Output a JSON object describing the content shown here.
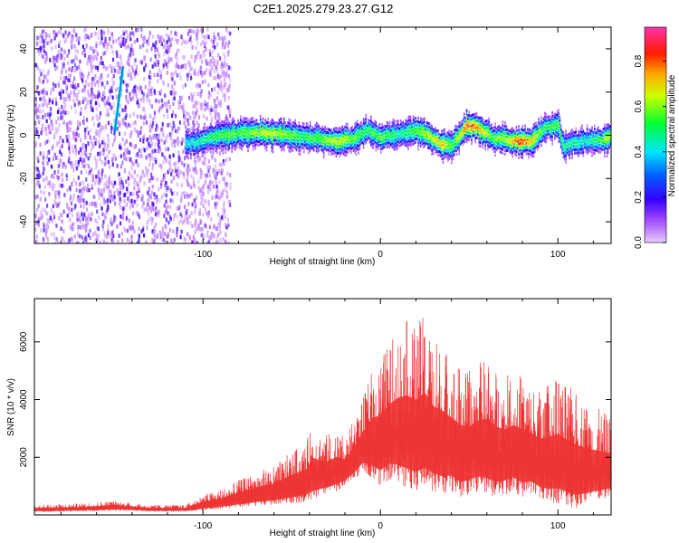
{
  "figure": {
    "title": "C2E1.2025.279.23.27.G12"
  },
  "chart_data": [
    {
      "type": "heatmap",
      "xlabel": "Height of straight line (km)",
      "ylabel": "Frequency (Hz)",
      "xlim": [
        -195,
        130
      ],
      "ylim": [
        -50,
        50
      ],
      "x_ticks": [
        -100,
        0,
        100
      ],
      "x_tick_labels": [
        "-100",
        "0",
        "100"
      ],
      "y_ticks": [
        -40,
        -20,
        0,
        20,
        40
      ],
      "y_tick_labels": [
        "-40",
        "-20",
        "0",
        "20",
        "40"
      ],
      "colorbar": {
        "label": "Normalized spectral amplitude",
        "range": [
          0.0,
          0.95
        ],
        "ticks": [
          0.0,
          0.2,
          0.4,
          0.6,
          0.8
        ],
        "tick_labels": [
          "0.0",
          "0.2",
          "0.4",
          "0.6",
          "0.8"
        ]
      },
      "trace_ridge": {
        "x": [
          -105,
          -95,
          -85,
          -75,
          -65,
          -55,
          -45,
          -35,
          -25,
          -15,
          -8,
          0,
          10,
          20,
          28,
          35,
          40,
          48,
          55,
          62,
          70,
          78,
          85,
          92,
          100,
          103,
          108,
          115,
          122,
          130
        ],
        "freq": [
          -3,
          0,
          1,
          2,
          2,
          1,
          0,
          -1,
          -2,
          -1,
          3,
          0,
          1,
          3,
          0,
          -4,
          -4,
          5,
          4,
          0,
          -1,
          -2,
          -2,
          4,
          5,
          -5,
          -3,
          -2,
          -2,
          0
        ],
        "amplitude": [
          0.45,
          0.55,
          0.6,
          0.6,
          0.7,
          0.65,
          0.55,
          0.6,
          0.7,
          0.6,
          0.55,
          0.6,
          0.5,
          0.6,
          0.7,
          0.75,
          0.55,
          0.85,
          0.8,
          0.6,
          0.65,
          0.9,
          0.75,
          0.55,
          0.6,
          0.5,
          0.5,
          0.45,
          0.55,
          0.7
        ]
      },
      "streak": {
        "x": [
          -150,
          -145
        ],
        "freq": [
          0,
          32
        ]
      },
      "noise_region_xmax": -95
    },
    {
      "type": "line",
      "xlabel": "Height of straight line (km)",
      "ylabel": "SNR (10 * v/v)",
      "xlim": [
        -195,
        130
      ],
      "ylim": [
        0,
        7500
      ],
      "x_ticks": [
        -100,
        0,
        100
      ],
      "x_tick_labels": [
        "-100",
        "0",
        "100"
      ],
      "y_ticks": [
        2000,
        4000,
        6000
      ],
      "y_tick_labels": [
        "2000",
        "4000",
        "6000"
      ],
      "series": [
        {
          "name": "SNR",
          "color": "#ee3333",
          "envelope": {
            "x": [
              -195,
              -170,
              -150,
              -140,
              -130,
              -110,
              -100,
              -90,
              -80,
              -70,
              -60,
              -50,
              -42,
              -38,
              -35,
              -30,
              -25,
              -20,
              -15,
              -10,
              -5,
              0,
              5,
              10,
              15,
              20,
              25,
              30,
              35,
              40,
              45,
              50,
              55,
              60,
              65,
              70,
              75,
              80,
              85,
              90,
              95,
              100,
              105,
              110,
              115,
              120,
              125,
              130
            ],
            "upper": [
              350,
              400,
              500,
              420,
              350,
              350,
              700,
              900,
              1200,
              1500,
              1700,
              2200,
              2500,
              3200,
              3000,
              2800,
              3000,
              2700,
              3300,
              4000,
              5000,
              5500,
              6000,
              6500,
              6800,
              6600,
              7000,
              6200,
              6000,
              5500,
              5200,
              5000,
              5300,
              5500,
              5100,
              4800,
              5000,
              4900,
              4600,
              4400,
              4600,
              4800,
              4500,
              4300,
              4000,
              3800,
              3600,
              3400
            ],
            "lower": [
              100,
              120,
              150,
              150,
              120,
              120,
              150,
              200,
              250,
              300,
              350,
              400,
              450,
              500,
              600,
              700,
              800,
              1000,
              1200,
              1500,
              1300,
              1000,
              1200,
              1100,
              900,
              800,
              900,
              800,
              700,
              800,
              600,
              700,
              800,
              700,
              600,
              700,
              800,
              600,
              700,
              500,
              400,
              400,
              300,
              200,
              300,
              400,
              500,
              600
            ]
          }
        }
      ]
    }
  ]
}
